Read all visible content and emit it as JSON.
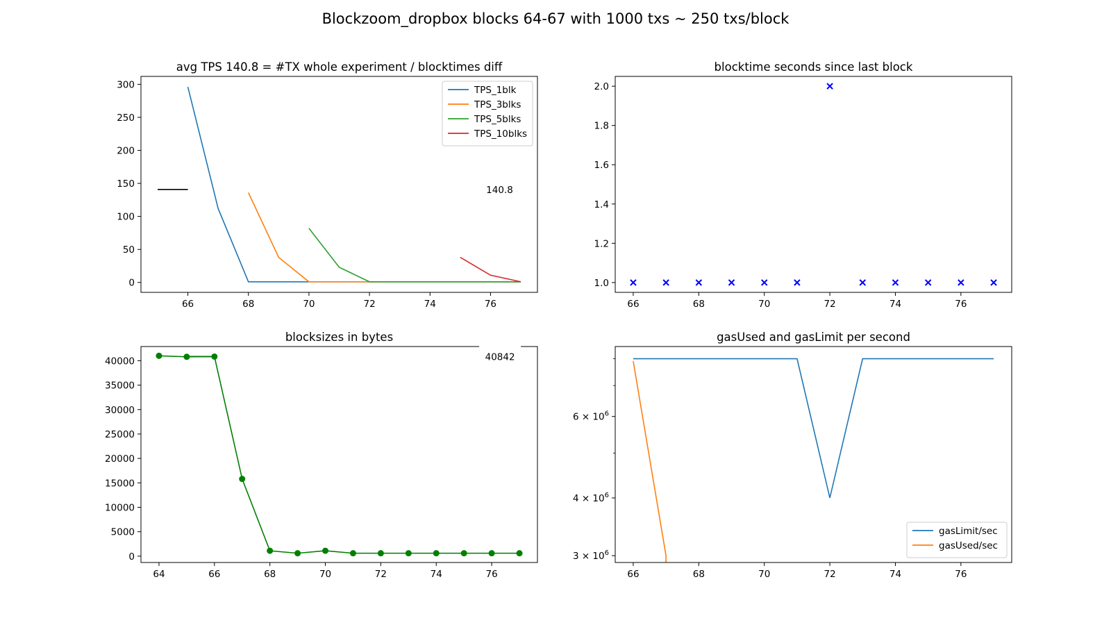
{
  "figure": {
    "title": "Blockzoom_dropbox blocks 64-67 with 1000 txs ~ 250 txs/block"
  },
  "colors": {
    "C0": "#1f77b4",
    "C1": "#ff7f0e",
    "C2": "#2ca02c",
    "C3": "#d62728",
    "green": "#008000",
    "blue": "#0000ff",
    "black": "#000000"
  },
  "chart_data": [
    {
      "id": "tps",
      "type": "line",
      "title": "avg TPS 140.8 = #TX whole experiment / blocktimes diff",
      "xlim": [
        64.45,
        77.55
      ],
      "ylim": [
        -15,
        312
      ],
      "xticks": [
        66,
        68,
        70,
        72,
        74,
        76
      ],
      "yticks": [
        0,
        50,
        100,
        150,
        200,
        250,
        300
      ],
      "legend": {
        "position": "top-right"
      },
      "series": [
        {
          "name": "TPS_1blk",
          "color": "C0",
          "x": [
            66,
            67,
            68,
            69,
            70,
            71,
            72,
            73,
            74,
            75,
            76,
            77
          ],
          "y": [
            296,
            112,
            1,
            1,
            1,
            1,
            1,
            1,
            1,
            1,
            1,
            1
          ]
        },
        {
          "name": "TPS_3blks",
          "color": "C1",
          "x": [
            68,
            69,
            70,
            71,
            72,
            73,
            74,
            75,
            76,
            77
          ],
          "y": [
            136,
            38,
            1,
            1,
            1,
            1,
            1,
            1,
            1,
            1
          ]
        },
        {
          "name": "TPS_5blks",
          "color": "C2",
          "x": [
            70,
            71,
            72,
            73,
            74,
            75,
            76,
            77
          ],
          "y": [
            82,
            23,
            1,
            1,
            1,
            1,
            1,
            1
          ]
        },
        {
          "name": "TPS_10blks",
          "color": "C3",
          "x": [
            75,
            76,
            77
          ],
          "y": [
            38,
            11,
            1
          ]
        }
      ],
      "hlines": [
        {
          "y": 140.8,
          "x": [
            65,
            66
          ],
          "color": "black"
        }
      ],
      "annotations": [
        {
          "text": "140.8",
          "x": 76.3,
          "y": 140.8
        }
      ]
    },
    {
      "id": "blocktime",
      "type": "scatter",
      "title": "blocktime seconds since last block",
      "xlim": [
        65.45,
        77.55
      ],
      "ylim": [
        0.95,
        2.05
      ],
      "xticks": [
        66,
        68,
        70,
        72,
        74,
        76
      ],
      "yticks": [
        1.0,
        1.2,
        1.4,
        1.6,
        1.8,
        2.0
      ],
      "ytick_labels": [
        "1.0",
        "1.2",
        "1.4",
        "1.6",
        "1.8",
        "2.0"
      ],
      "marker": "x",
      "color": "blue",
      "x": [
        66,
        67,
        68,
        69,
        70,
        71,
        72,
        73,
        74,
        75,
        76,
        77
      ],
      "y": [
        1,
        1,
        1,
        1,
        1,
        1,
        2,
        1,
        1,
        1,
        1,
        1
      ]
    },
    {
      "id": "blocksizes",
      "type": "line",
      "title": "blocksizes in bytes",
      "xlim": [
        63.35,
        77.65
      ],
      "ylim": [
        -1300,
        42900
      ],
      "xticks": [
        64,
        66,
        68,
        70,
        72,
        74,
        76
      ],
      "yticks": [
        0,
        5000,
        10000,
        15000,
        20000,
        25000,
        30000,
        35000,
        40000
      ],
      "marker": "o",
      "color": "green",
      "x": [
        64,
        65,
        66,
        67,
        68,
        69,
        70,
        71,
        72,
        73,
        74,
        75,
        76,
        77
      ],
      "y": [
        41000,
        40800,
        40842,
        15800,
        1100,
        600,
        1100,
        600,
        600,
        600,
        600,
        600,
        600,
        600
      ],
      "hlines": [
        {
          "y": 40842,
          "x": [
            65,
            66
          ],
          "color": "black"
        }
      ],
      "annotations": [
        {
          "text": "40842",
          "x": 76.3,
          "y": 40842
        }
      ]
    },
    {
      "id": "gas",
      "type": "line",
      "title": "gasUsed and gasLimit per second",
      "scale_y": "log",
      "xlim": [
        65.45,
        77.55
      ],
      "ylim": [
        2900000,
        8500000
      ],
      "xticks": [
        66,
        68,
        70,
        72,
        74,
        76
      ],
      "yticks": [
        3000000,
        4000000,
        6000000
      ],
      "ytick_labels": [
        [
          "3",
          "6"
        ],
        [
          "4",
          "6"
        ],
        [
          "6",
          "6"
        ]
      ],
      "yminorticks": [
        5000000,
        7000000,
        8000000
      ],
      "legend": {
        "position": "bottom-right"
      },
      "series": [
        {
          "name": "gasLimit/sec",
          "color": "C0",
          "x": [
            66,
            67,
            68,
            69,
            70,
            71,
            72,
            73,
            74,
            75,
            76,
            77
          ],
          "y": [
            8000000,
            8000000,
            8000000,
            8000000,
            8000000,
            8000000,
            4000000,
            8000000,
            8000000,
            8000000,
            8000000,
            8000000
          ]
        },
        {
          "name": "gasUsed/sec",
          "color": "C1",
          "x": [
            66,
            67,
            67
          ],
          "y": [
            7900000,
            3000000,
            2900000
          ]
        }
      ]
    }
  ]
}
